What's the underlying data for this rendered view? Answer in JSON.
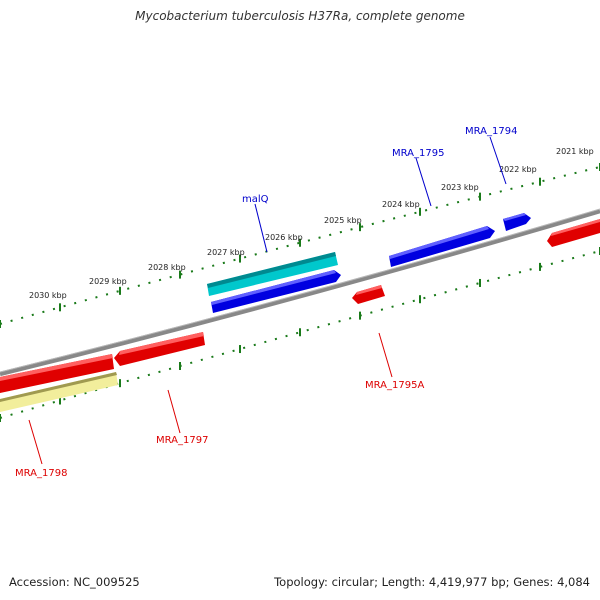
{
  "title": "Mycobacterium tuberculosis H37Ra, complete genome",
  "footer": {
    "accession": "Accession: NC_009525",
    "summary": "Topology: circular; Length: 4,419,977 bp; Genes: 4,084"
  },
  "colors": {
    "forward_gene": "#0000e0",
    "reverse_gene": "#e00000",
    "highlight_gene": "#00c0c8",
    "pale_gene": "#f0ec98",
    "backbone": "#808080",
    "tick_marks": "#1a7a1a",
    "forward_label": "#0000cc",
    "reverse_label": "#dd0000"
  },
  "ticks": {
    "outer": [
      "2021 kbp",
      "2022 kbp",
      "2023 kbp",
      "2024 kbp",
      "2025 kbp",
      "2026 kbp",
      "2027 kbp",
      "2028 kbp",
      "2029 kbp",
      "2030 kbp"
    ]
  },
  "genes": {
    "mra1794": "MRA_1794",
    "mra1795": "MRA_1795",
    "malq": "malQ",
    "mra1795a": "MRA_1795A",
    "mra1797": "MRA_1797",
    "mra1798": "MRA_1798"
  }
}
